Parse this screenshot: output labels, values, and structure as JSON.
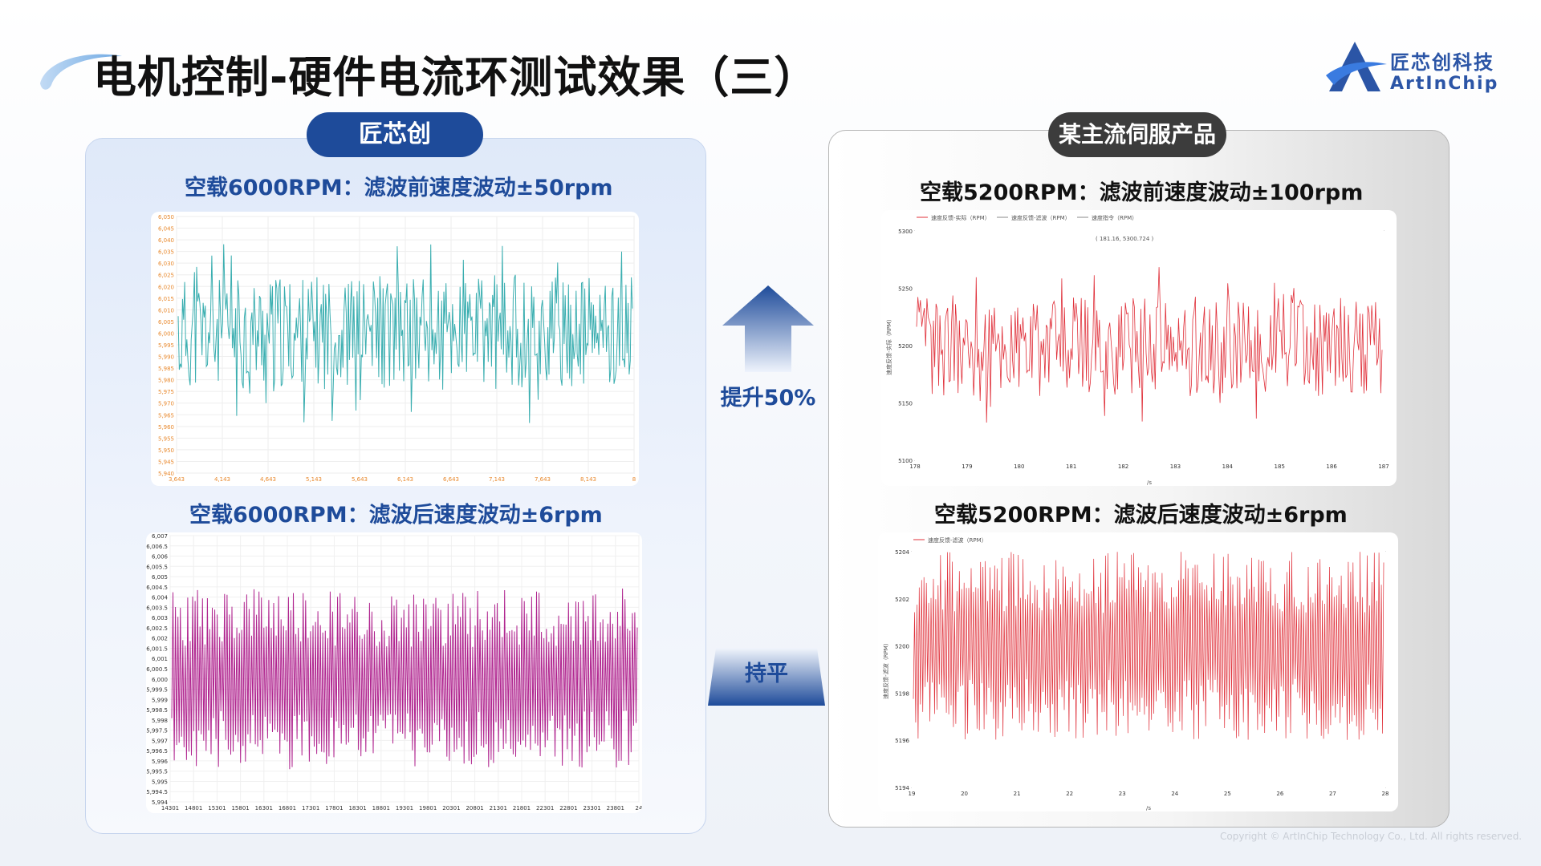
{
  "title": "电机控制-硬件电流环测试效果（三）",
  "logo": {
    "cn": "匠芯创科技",
    "en": "ArtInChip"
  },
  "left": {
    "header": "匠芯创",
    "top_caption": "空载6000RPM：滤波前速度波动±50rpm",
    "bottom_caption": "空载6000RPM：滤波后速度波动±6rpm"
  },
  "right": {
    "header": "某主流伺服产品",
    "top_caption": "空载5200RPM：滤波前速度波动±100rpm",
    "bottom_caption": "空载5200RPM：滤波后速度波动±6rpm"
  },
  "middle": {
    "up_label": "提升50%",
    "flat_label": "持平"
  },
  "copyright": "Copyright © ArtInChip Technology Co., Ltd. All rights reserved.",
  "colors": {
    "teal": "#3aaeb0",
    "magenta": "#b0248f",
    "red": "#e0303a",
    "brand_blue": "#1e4b9a"
  },
  "chart_data": [
    {
      "type": "line",
      "color": "teal",
      "ylim": [
        5940,
        6050
      ],
      "yticks": [
        "6,050",
        "6,045",
        "6,040",
        "6,035",
        "6,030",
        "6,025",
        "6,020",
        "6,015",
        "6,010",
        "6,005",
        "6,000",
        "5,995",
        "5,990",
        "5,985",
        "5,980",
        "5,975",
        "5,970",
        "5,965",
        "5,960",
        "5,955",
        "5,950",
        "5,945",
        "5,940"
      ],
      "xticks": [
        "3,643",
        "4,143",
        "4,643",
        "5,143",
        "5,643",
        "6,143",
        "6,643",
        "7,143",
        "7,643",
        "8,143",
        "8"
      ],
      "fluctuation": "±50rpm",
      "center": 6000
    },
    {
      "type": "line",
      "color": "magenta",
      "ylim": [
        5994,
        6007
      ],
      "yticks": [
        "6,007",
        "6,006.5",
        "6,006",
        "6,005.5",
        "6,005",
        "6,004.5",
        "6,004",
        "6,003.5",
        "6,003",
        "6,002.5",
        "6,002",
        "6,001.5",
        "6,001",
        "6,000.5",
        "6,000",
        "5,999.5",
        "5,999",
        "5,998.5",
        "5,998",
        "5,997.5",
        "5,997",
        "5,996.5",
        "5,996",
        "5,995.5",
        "5,995",
        "5,994.5",
        "5,994"
      ],
      "xticks": [
        "14301",
        "14801",
        "15301",
        "15801",
        "16301",
        "16801",
        "17301",
        "17801",
        "18301",
        "18801",
        "19301",
        "19801",
        "20301",
        "20801",
        "21301",
        "21801",
        "22301",
        "22801",
        "23301",
        "23801",
        "24"
      ],
      "fluctuation": "±6rpm",
      "center": 6000
    },
    {
      "type": "line",
      "color": "red",
      "ylim": [
        5100,
        5300
      ],
      "yticks": [
        "5300",
        "5250",
        "5200",
        "5150",
        "5100"
      ],
      "xticks": [
        "178",
        "179",
        "180",
        "181",
        "182",
        "183",
        "184",
        "185",
        "186",
        "187"
      ],
      "xlabel": "/s",
      "ylabel": "速度反馈-实际（RPM）",
      "legend": [
        "速度反馈-实际（RPM）",
        "速度反馈-滤波（RPM）",
        "速度指令（RPM）"
      ],
      "annotation": "( 181.16, 5300.724 )",
      "fluctuation": "±100rpm",
      "center": 5200
    },
    {
      "type": "line",
      "color": "red",
      "ylim": [
        5194,
        5204
      ],
      "yticks": [
        "5204",
        "5202",
        "5200",
        "5198",
        "5196",
        "5194"
      ],
      "xticks": [
        "19",
        "20",
        "21",
        "22",
        "23",
        "24",
        "25",
        "26",
        "27",
        "28"
      ],
      "xlabel": "/s",
      "ylabel": "速度反馈-滤波（RPM）",
      "legend": [
        "速度反馈-滤波（RPM）"
      ],
      "fluctuation": "±6rpm",
      "center": 5200
    }
  ]
}
